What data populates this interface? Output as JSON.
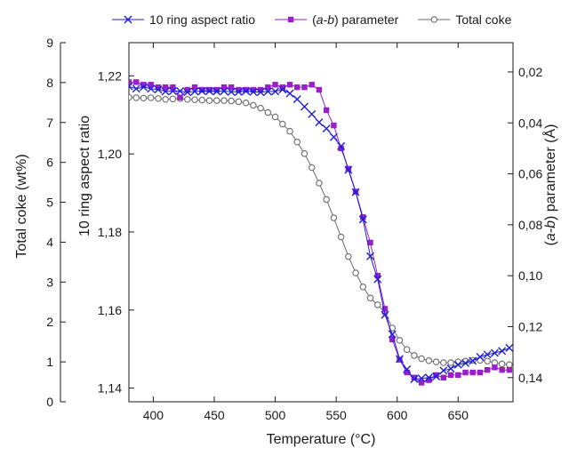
{
  "chart_data": {
    "type": "line",
    "title": "",
    "x": {
      "label": "Temperature (°C)",
      "range": [
        380,
        695
      ],
      "ticks": [
        "400",
        "450",
        "500",
        "550",
        "600",
        "650"
      ]
    },
    "y_outer": {
      "label": "Total coke (wt%)",
      "range": [
        0,
        9
      ],
      "ticks": [
        "0",
        "1",
        "2",
        "3",
        "4",
        "5",
        "6",
        "7",
        "8",
        "9"
      ]
    },
    "y_left": {
      "label": "10 ring aspect ratio",
      "range": [
        1.1365,
        1.2285
      ],
      "ticks": [
        "1,14",
        "1,16",
        "1,18",
        "1,20",
        "1,22"
      ]
    },
    "y_right": {
      "label_prefix": "(",
      "label_italic": "a-b",
      "label_suffix": ") parameter (Å)",
      "range": [
        0.0085,
        0.1495
      ],
      "inverted": true,
      "ticks": [
        "0,02",
        "0,04",
        "0,06",
        "0,08",
        "0,10",
        "0,12",
        "0,14"
      ]
    },
    "legend": {
      "position": "top",
      "entries": [
        {
          "prefix": "10 ring aspect ratio",
          "italic": "",
          "suffix": ""
        },
        {
          "prefix": "(",
          "italic": "a-b",
          "suffix": ") parameter"
        },
        {
          "prefix": "Total coke",
          "italic": "",
          "suffix": ""
        }
      ]
    },
    "series": [
      {
        "name": "10 ring aspect ratio",
        "axis": "y_left",
        "color": "#1f1fd6",
        "marker": "x",
        "x": [
          380,
          386,
          392,
          398,
          404,
          410,
          416,
          422,
          428,
          434,
          440,
          446,
          452,
          458,
          464,
          470,
          476,
          482,
          488,
          494,
          500,
          506,
          512,
          518,
          524,
          530,
          536,
          542,
          548,
          554,
          560,
          566,
          572,
          578,
          584,
          590,
          596,
          602,
          608,
          614,
          620,
          626,
          632,
          638,
          644,
          650,
          656,
          662,
          668,
          674,
          680,
          686,
          692
        ],
        "y": [
          1.2173,
          1.2167,
          1.2171,
          1.2167,
          1.2165,
          1.216,
          1.2161,
          1.2161,
          1.2158,
          1.216,
          1.2161,
          1.2161,
          1.216,
          1.2161,
          1.2159,
          1.2159,
          1.2161,
          1.2159,
          1.2158,
          1.216,
          1.216,
          1.2165,
          1.2155,
          1.214,
          1.2121,
          1.2102,
          1.2081,
          1.2065,
          1.2043,
          1.202,
          1.1959,
          1.1902,
          1.1832,
          1.1738,
          1.1679,
          1.1588,
          1.1538,
          1.1475,
          1.1448,
          1.1423,
          1.1425,
          1.1427,
          1.143,
          1.1445,
          1.145,
          1.146,
          1.1464,
          1.147,
          1.148,
          1.1486,
          1.149,
          1.1495,
          1.1503
        ]
      },
      {
        "name": "(a-b) parameter",
        "axis": "y_right",
        "color": "#9a1fc9",
        "marker": "square",
        "x": [
          380,
          386,
          392,
          398,
          404,
          410,
          416,
          422,
          428,
          434,
          440,
          446,
          452,
          458,
          464,
          470,
          476,
          482,
          488,
          494,
          500,
          506,
          512,
          518,
          524,
          530,
          536,
          542,
          548,
          554,
          560,
          566,
          572,
          578,
          584,
          590,
          596,
          602,
          608,
          614,
          620,
          626,
          632,
          638,
          644,
          650,
          656,
          662,
          668,
          674,
          680,
          686,
          692
        ],
        "y": [
          0.024,
          0.024,
          0.025,
          0.025,
          0.026,
          0.026,
          0.026,
          0.03,
          0.027,
          0.026,
          0.027,
          0.027,
          0.027,
          0.026,
          0.026,
          0.027,
          0.027,
          0.027,
          0.027,
          0.026,
          0.025,
          0.026,
          0.025,
          0.026,
          0.026,
          0.025,
          0.027,
          0.035,
          0.041,
          0.05,
          0.058,
          0.067,
          0.077,
          0.087,
          0.1,
          0.113,
          0.125,
          0.133,
          0.138,
          0.14,
          0.142,
          0.141,
          0.139,
          0.14,
          0.139,
          0.139,
          0.138,
          0.138,
          0.138,
          0.137,
          0.136,
          0.137,
          0.137
        ]
      },
      {
        "name": "Total coke",
        "axis": "y_outer",
        "color": "#6b6b6b",
        "marker": "circle",
        "x": [
          380,
          386,
          392,
          398,
          404,
          410,
          416,
          422,
          428,
          434,
          440,
          446,
          452,
          458,
          464,
          470,
          476,
          482,
          488,
          494,
          500,
          506,
          512,
          518,
          524,
          530,
          536,
          542,
          548,
          554,
          560,
          566,
          572,
          578,
          584,
          590,
          596,
          602,
          608,
          614,
          620,
          626,
          632,
          638,
          644,
          650,
          656,
          662,
          668,
          674,
          680,
          686,
          692
        ],
        "y": [
          7.63,
          7.62,
          7.61,
          7.62,
          7.6,
          7.58,
          7.59,
          7.6,
          7.58,
          7.57,
          7.56,
          7.55,
          7.55,
          7.55,
          7.54,
          7.52,
          7.49,
          7.43,
          7.36,
          7.25,
          7.14,
          6.96,
          6.78,
          6.51,
          6.22,
          5.87,
          5.48,
          5.07,
          4.61,
          4.13,
          3.64,
          3.23,
          2.88,
          2.6,
          2.43,
          2.24,
          1.85,
          1.54,
          1.31,
          1.16,
          1.08,
          1.03,
          1.0,
          0.98,
          0.98,
          1.0,
          1.02,
          1.04,
          1.04,
          1.02,
          0.98,
          0.95,
          0.93
        ]
      }
    ]
  }
}
